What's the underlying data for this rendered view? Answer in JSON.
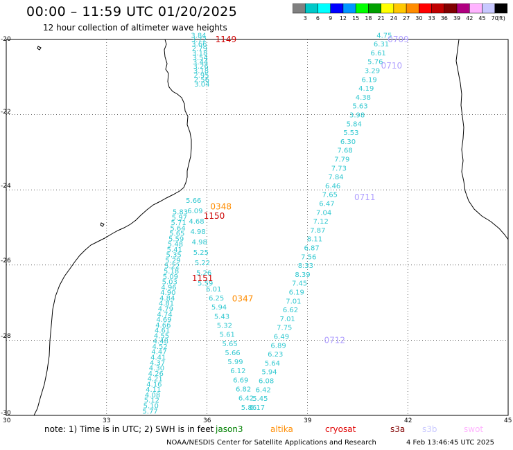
{
  "header": {
    "title": "00:00 – 11:59 UTC 01/20/2025",
    "subtitle": "12 hour collection of altimeter wave heights"
  },
  "colorbar": {
    "colors": [
      "#808080",
      "#00c8c8",
      "#00ffff",
      "#0000ff",
      "#0096ff",
      "#00ff00",
      "#00a000",
      "#ffff00",
      "#ffc800",
      "#ff8c00",
      "#ff0000",
      "#c00000",
      "#800000",
      "#b00080",
      "#ffb4ff",
      "#c8c8ff",
      "#000000"
    ],
    "labels": [
      "3",
      "6",
      "9",
      "12",
      "15",
      "18",
      "21",
      "24",
      "27",
      "30",
      "33",
      "36",
      "39",
      "42",
      "45",
      "70",
      "(ft)"
    ]
  },
  "axes": {
    "y_ticks": [
      "-20",
      "-22",
      "-24",
      "-26",
      "-28",
      "-30"
    ],
    "x_ticks": [
      "30",
      "33",
      "36",
      "39",
      "42",
      "45"
    ]
  },
  "passes": [
    {
      "id": "1149",
      "color": "#cc0000",
      "lat": -20.0,
      "lon": 36.25
    },
    {
      "id": "0348",
      "color": "#ff8c00",
      "lat": -24.45,
      "lon": 36.1
    },
    {
      "id": "1150",
      "color": "#cc0000",
      "lat": -24.7,
      "lon": 35.9
    },
    {
      "id": "1151",
      "color": "#cc0000",
      "lat": -26.35,
      "lon": 35.55
    },
    {
      "id": "0347",
      "color": "#ff8c00",
      "lat": -26.9,
      "lon": 36.75
    },
    {
      "id": "0709",
      "color": "#b0a0ff",
      "lat": -20.0,
      "lon": 41.4
    },
    {
      "id": "0710",
      "color": "#b0a0ff",
      "lat": -20.7,
      "lon": 41.2
    },
    {
      "id": "0711",
      "color": "#b0a0ff",
      "lat": -24.2,
      "lon": 40.4
    },
    {
      "id": "0712",
      "color": "#b0a0ff",
      "lat": -28.0,
      "lon": 39.5
    }
  ],
  "tracks": [
    {
      "name": "track-north-left",
      "color": "#30c8d0",
      "lon_start": 35.75,
      "lon_end": 35.85,
      "lat_start": -19.95,
      "lat_end": -21.25,
      "values": [
        "3.84",
        "3.72",
        "3.66",
        "2.79",
        "3.18",
        "3.54",
        "3.44",
        "3.26",
        "3.18",
        "2.95",
        "2.56",
        "3.04"
      ]
    },
    {
      "name": "track-south-left",
      "color": "#30c8d0",
      "lon_start": 35.2,
      "lon_end": 34.3,
      "lat_start": -24.65,
      "lat_end": -29.95,
      "values": [
        "5.83",
        "5.97",
        "5.71",
        "5.64",
        "5.65",
        "5.59",
        "5.48",
        "5.41",
        "5.35",
        "5.29",
        "5.22",
        "5.18",
        "5.09",
        "5.03",
        "4.96",
        "4.90",
        "4.84",
        "4.81",
        "4.79",
        "4.74",
        "4.69",
        "4.66",
        "4.61",
        "4.55",
        "4.48",
        "4.52",
        "4.47",
        "4.41",
        "4.37",
        "4.30",
        "4.26",
        "4.21",
        "4.16",
        "4.11",
        "4.08",
        "5.12",
        "5.10",
        "5.77"
      ]
    },
    {
      "name": "track-mid-left",
      "color": "#30c8d0",
      "lon_start": 35.6,
      "lon_end": 35.95,
      "lat_start": -24.35,
      "lat_end": -26.55,
      "values": [
        "5.66",
        "6.09",
        "4.68",
        "4.98",
        "4.98",
        "5.25",
        "5.22",
        "5.26",
        "5.59"
      ]
    },
    {
      "name": "track-descending",
      "color": "#30c8d0",
      "lon_start": 36.2,
      "lon_end": 37.25,
      "lat_start": -26.7,
      "lat_end": -29.85,
      "values": [
        "6.01",
        "6.25",
        "5.94",
        "5.43",
        "5.32",
        "5.61",
        "5.65",
        "5.66",
        "5.99",
        "6.12",
        "6.69",
        "6.82",
        "6.42",
        "5.86"
      ]
    },
    {
      "name": "track-ascending-east",
      "color": "#30c8d0",
      "lon_start": 41.3,
      "lon_end": 37.5,
      "lat_start": -19.95,
      "lat_end": -29.85,
      "values": [
        "4.75",
        "6.31",
        "6.61",
        "5.76",
        "3.29",
        "6.19",
        "4.19",
        "4.38",
        "5.63",
        "3.98",
        "5.84",
        "5.53",
        "6.30",
        "7.68",
        "7.79",
        "7.73",
        "7.84",
        "6.46",
        "7.65",
        "6.47",
        "7.04",
        "7.12",
        "7.87",
        "8.11",
        "6.87",
        "7.56",
        "8.33",
        "8.39",
        "7.45",
        "6.19",
        "7.01",
        "6.62",
        "7.01",
        "7.75",
        "6.49",
        "6.89",
        "6.23",
        "5.64",
        "5.94",
        "6.08",
        "6.42",
        "5.45",
        "6.17"
      ]
    }
  ],
  "footer": {
    "note": "note: 1) Time is in UTC; 2) SWH is in feet",
    "satellites": [
      {
        "name": "jason3",
        "color": "#008000"
      },
      {
        "name": "altika",
        "color": "#ff8c00"
      },
      {
        "name": "cryosat",
        "color": "#e00000"
      },
      {
        "name": "s3a",
        "color": "#800000"
      },
      {
        "name": "s3b",
        "color": "#c8c8ff"
      },
      {
        "name": "swot",
        "color": "#ffb4ff"
      }
    ],
    "credit": "NOAA/NESDIS Center for Satellite Applications and Research",
    "timestamp": "4 Feb 13:46:45 UTC 2025"
  }
}
